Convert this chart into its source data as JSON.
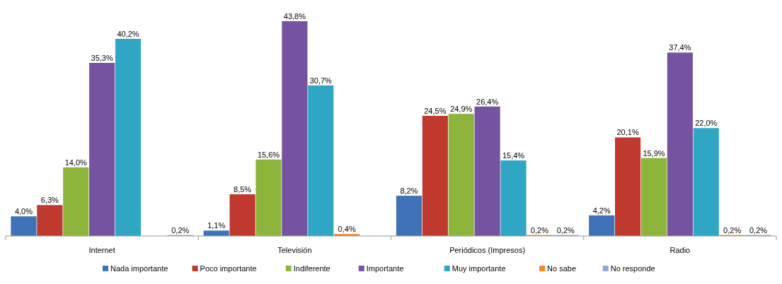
{
  "chart_data": {
    "type": "bar",
    "categories": [
      "Internet",
      "Televisión",
      "Periódicos (Impresos)",
      "Radio"
    ],
    "legend": "bottom",
    "series": [
      {
        "name": "Nada importante",
        "color": "#3f72b8",
        "values": [
          4.0,
          1.1,
          8.2,
          4.2
        ],
        "value_labels": [
          "4,0%",
          "1,1%",
          "8,2%",
          "4,2%"
        ]
      },
      {
        "name": "Poco importante",
        "color": "#c0392f",
        "values": [
          6.3,
          8.5,
          24.5,
          20.1
        ],
        "value_labels": [
          "6,3%",
          "8,5%",
          "24,5%",
          "20,1%"
        ]
      },
      {
        "name": "Indiferente",
        "color": "#8db53c",
        "values": [
          14.0,
          15.6,
          24.9,
          15.9
        ],
        "value_labels": [
          "14,0%",
          "15,6%",
          "24,9%",
          "15,9%"
        ]
      },
      {
        "name": "Importante",
        "color": "#7553a0",
        "values": [
          35.3,
          43.8,
          26.4,
          37.4
        ],
        "value_labels": [
          "35,3%",
          "43,8%",
          "26,4%",
          "37,4%"
        ]
      },
      {
        "name": "Muy importante",
        "color": "#2ea6c4",
        "values": [
          40.2,
          30.7,
          15.4,
          22.0
        ],
        "value_labels": [
          "40,2%",
          "30,7%",
          "15,4%",
          "22,0%"
        ]
      },
      {
        "name": "No sabe",
        "color": "#f08a2a",
        "values": [
          null,
          0.4,
          0.2,
          0.2
        ],
        "value_labels": [
          null,
          "0,4%",
          "0,2%",
          "0,2%"
        ]
      },
      {
        "name": "No responde",
        "color": "#8eaad4",
        "values": [
          0.2,
          null,
          0.2,
          0.2
        ],
        "value_labels": [
          "0,2%",
          null,
          "0,2%",
          "0,2%"
        ]
      }
    ]
  }
}
